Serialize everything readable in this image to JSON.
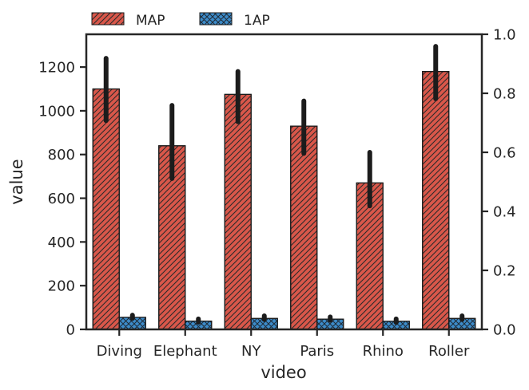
{
  "chart_data": {
    "type": "bar",
    "categories": [
      "Diving",
      "Elephant",
      "NY",
      "Paris",
      "Rhino",
      "Roller"
    ],
    "xlabel": "video",
    "ylabel": "value",
    "ylim": [
      0,
      1350
    ],
    "yticks": [
      0,
      200,
      400,
      600,
      800,
      1000,
      1200
    ],
    "y2lim": [
      0.0,
      1.0
    ],
    "y2ticks": [
      "0.0",
      "0.2",
      "0.4",
      "0.6",
      "0.8",
      "1.0"
    ],
    "legend_position": "top-left, outside plot",
    "series": [
      {
        "name": "MAP",
        "color": "#d9574a",
        "hatch": "diagonal",
        "values": [
          1100,
          840,
          1075,
          930,
          670,
          1180
        ],
        "error_low": [
          955,
          690,
          950,
          805,
          565,
          1055
        ],
        "error_high": [
          1240,
          1025,
          1180,
          1045,
          810,
          1295
        ]
      },
      {
        "name": "1AP",
        "color": "#3c8bc9",
        "hatch": "crosshatch",
        "values": [
          55,
          38,
          50,
          47,
          37,
          50
        ],
        "error_low": [
          50,
          33,
          45,
          42,
          32,
          45
        ],
        "error_high": [
          65,
          48,
          62,
          57,
          48,
          62
        ]
      }
    ]
  }
}
